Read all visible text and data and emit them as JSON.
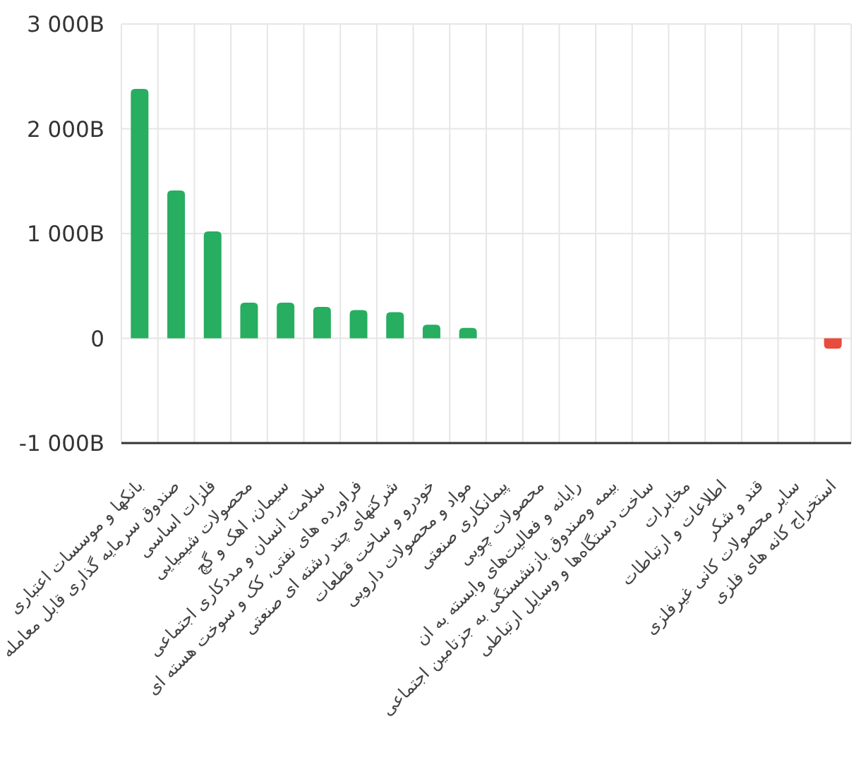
{
  "chart_data": {
    "type": "bar",
    "categories": [
      "بانکها و موسسات اعتباری",
      "صندوق سرمایه گذاری قابل معامله",
      "فلزات اساسی",
      "محصولات شیمیایی",
      "سیمان، اهک و گچ",
      "سلامت انسان و مددکاری اجتماعی",
      "فراورده های نفتی، کک و سوخت هسته ای",
      "شرکتهای چند رشته ای صنعتی",
      "خودرو و ساخت قطعات",
      "مواد و محصولات دارویی",
      "پیمانکاری صنعتی",
      "محصولات چوبی",
      "رایانه و فعالیت‌های وابسته به ان",
      "بیمه وصندوق بازنشستگی به جزتامین اجتماعی",
      "ساخت دستگاه‌ها و وسایل ارتباطی",
      "مخابرات",
      "اطلاعات و ارتباطات",
      "قند و شکر",
      "سایر محصولات کانی غیرفلزی",
      "استخراج کانه های فلزی"
    ],
    "values": [
      2380,
      1410,
      1020,
      340,
      340,
      300,
      270,
      250,
      130,
      100,
      0,
      0,
      0,
      0,
      0,
      0,
      0,
      0,
      0,
      -100
    ],
    "colors": [
      "#27ae60",
      "#27ae60",
      "#27ae60",
      "#27ae60",
      "#27ae60",
      "#27ae60",
      "#27ae60",
      "#27ae60",
      "#27ae60",
      "#27ae60",
      null,
      null,
      null,
      null,
      null,
      null,
      null,
      null,
      null,
      "#e74c3c"
    ],
    "ylim": [
      -1000,
      3000
    ],
    "yticks": [
      {
        "value": -1000,
        "label": "-1 000B"
      },
      0,
      {
        "value": 1000,
        "label": "1 000B"
      },
      {
        "value": 2000,
        "label": "2 000B"
      },
      {
        "value": 3000,
        "label": "3 000B"
      }
    ],
    "grid": true
  }
}
